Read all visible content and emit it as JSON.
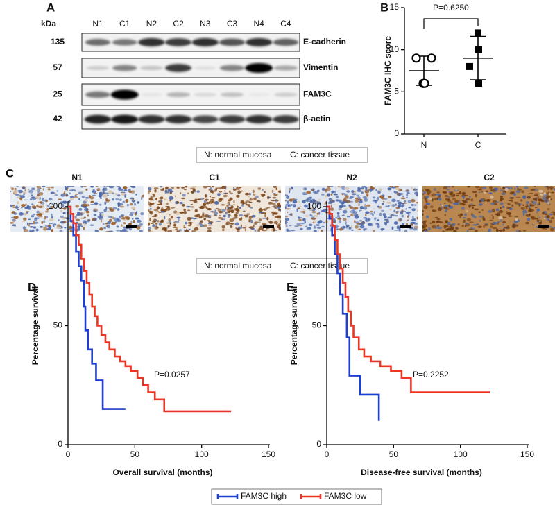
{
  "panel_a": {
    "label": "A",
    "unit": "kDa",
    "lanes": [
      "N1",
      "C1",
      "N2",
      "C2",
      "N3",
      "C3",
      "N4",
      "C4"
    ],
    "blots": [
      {
        "mw": "135",
        "protein": "E-cadherin"
      },
      {
        "mw": "57",
        "protein": "Vimentin"
      },
      {
        "mw": "25",
        "protein": "FAM3C"
      },
      {
        "mw": "42",
        "protein": "β-actin"
      }
    ]
  },
  "legend_key": [
    "N: normal mucosa",
    "C: cancer tissue"
  ],
  "panel_c": {
    "label": "C",
    "images": [
      "N1",
      "C1",
      "N2",
      "C2"
    ]
  },
  "chart_data": [
    {
      "label": "B",
      "type": "scatter",
      "ylabel": "FAM3C IHC score",
      "categories": [
        "N",
        "C"
      ],
      "values": [
        [
          9,
          9,
          6,
          6
        ],
        [
          6,
          8,
          10,
          12
        ]
      ],
      "mean": [
        7.5,
        9
      ],
      "sd": [
        1.73,
        2.58
      ],
      "markers": [
        "circle",
        "square"
      ],
      "color": "#000000",
      "ylim": [
        0,
        15
      ],
      "yticks": [
        0,
        5,
        10,
        15
      ],
      "annotation": "P=0.6250"
    },
    {
      "label": "D",
      "type": "line",
      "step": true,
      "xlabel": "Overall survival (months)",
      "ylabel": "Percentage survival",
      "xlim": [
        0,
        150
      ],
      "xticks": [
        0,
        50,
        100,
        150
      ],
      "ylim": [
        0,
        100
      ],
      "yticks": [
        0,
        50,
        100
      ],
      "annotation": "P=0.0257",
      "series": [
        {
          "name": "FAM3C high",
          "color": "#1f3fcf",
          "x": [
            0,
            2,
            4,
            6,
            8,
            10,
            12,
            13,
            15,
            18,
            21,
            26,
            43
          ],
          "values": [
            100,
            94,
            88,
            81,
            75,
            69,
            58,
            48,
            40,
            34,
            27,
            15,
            15
          ]
        },
        {
          "name": "FAM3C low",
          "color": "#ee3524",
          "x": [
            0,
            2,
            4,
            6,
            8,
            10,
            12,
            14,
            16,
            18,
            20,
            22,
            25,
            28,
            31,
            35,
            39,
            43,
            47,
            52,
            56,
            60,
            65,
            72,
            122
          ],
          "values": [
            100,
            97,
            93,
            88,
            84,
            78,
            73,
            68,
            63,
            58,
            54,
            50,
            46,
            43,
            40,
            37,
            35,
            33,
            31,
            28,
            25,
            22,
            19,
            14,
            14
          ]
        }
      ]
    },
    {
      "label": "E",
      "type": "line",
      "step": true,
      "xlabel": "Disease-free survival (months)",
      "ylabel": "Percentage survival",
      "xlim": [
        0,
        150
      ],
      "xticks": [
        0,
        50,
        100,
        150
      ],
      "ylim": [
        0,
        100
      ],
      "yticks": [
        0,
        50,
        100
      ],
      "annotation": "P=0.2252",
      "series": [
        {
          "name": "FAM3C high",
          "color": "#1f3fcf",
          "x": [
            0,
            2,
            4,
            6,
            8,
            10,
            12,
            15,
            17,
            25,
            39
          ],
          "values": [
            100,
            95,
            88,
            80,
            72,
            63,
            55,
            45,
            29,
            21,
            10
          ]
        },
        {
          "name": "FAM3C low",
          "color": "#ee3524",
          "x": [
            0,
            2,
            4,
            6,
            8,
            10,
            12,
            14,
            16,
            18,
            20,
            24,
            28,
            33,
            40,
            48,
            56,
            63,
            122
          ],
          "values": [
            100,
            97,
            92,
            86,
            80,
            74,
            68,
            62,
            56,
            50,
            45,
            40,
            37,
            35,
            33,
            31,
            28,
            22,
            22
          ]
        }
      ]
    }
  ]
}
